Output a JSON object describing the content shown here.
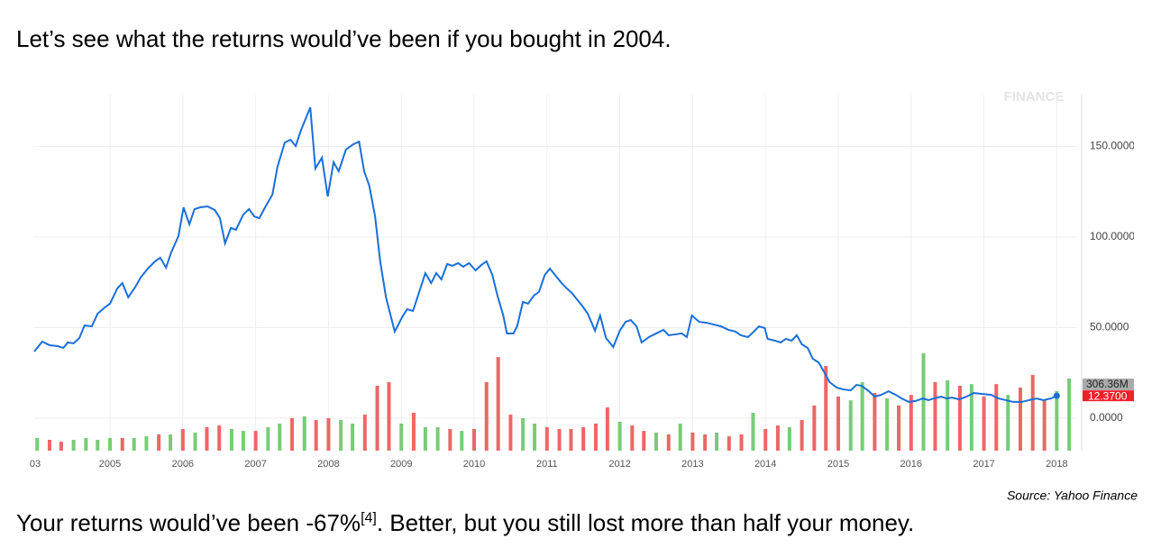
{
  "heading": "Let’s see what the returns would’ve been if you bought in 2004.",
  "chart_data": {
    "type": "line",
    "watermark": "FINANCE",
    "source": "Source: Yahoo Finance",
    "color": "#1a6fd9",
    "x": [
      2003.96,
      2004.07,
      2004.17,
      2004.28,
      2004.36,
      2004.42,
      2004.5,
      2004.58,
      2004.65,
      2004.75,
      2004.83,
      2004.93,
      2005.0,
      2005.1,
      2005.17,
      2005.25,
      2005.35,
      2005.42,
      2005.52,
      2005.62,
      2005.69,
      2005.77,
      2005.84,
      2005.94,
      2006.01,
      2006.09,
      2006.16,
      2006.24,
      2006.34,
      2006.44,
      2006.51,
      2006.58,
      2006.66,
      2006.73,
      2006.83,
      2006.91,
      2006.98,
      2007.05,
      2007.13,
      2007.23,
      2007.3,
      2007.4,
      2007.48,
      2007.55,
      2007.62,
      2007.75,
      2007.82,
      2007.91,
      2007.99,
      2008.07,
      2008.14,
      2008.24,
      2008.34,
      2008.42,
      2008.49,
      2008.56,
      2008.64,
      2008.71,
      2008.79,
      2008.91,
      2009.01,
      2009.08,
      2009.16,
      2009.23,
      2009.33,
      2009.41,
      2009.48,
      2009.55,
      2009.63,
      2009.7,
      2009.78,
      2009.85,
      2009.93,
      2010.02,
      2010.1,
      2010.17,
      2010.25,
      2010.32,
      2010.4,
      2010.45,
      2010.54,
      2010.59,
      2010.67,
      2010.74,
      2010.82,
      2010.89,
      2010.97,
      2011.04,
      2011.11,
      2011.19,
      2011.26,
      2011.34,
      2011.41,
      2011.49,
      2011.56,
      2011.66,
      2011.73,
      2011.81,
      2011.91,
      2012.0,
      2012.08,
      2012.15,
      2012.23,
      2012.3,
      2012.4,
      2012.5,
      2012.6,
      2012.67,
      2012.77,
      2012.85,
      2012.92,
      2012.99,
      2013.09,
      2013.19,
      2013.29,
      2013.39,
      2013.49,
      2013.59,
      2013.66,
      2013.76,
      2013.84,
      2013.91,
      2013.99,
      2014.03,
      2014.13,
      2014.21,
      2014.28,
      2014.36,
      2014.43,
      2014.5,
      2014.58,
      2014.65,
      2014.73,
      2014.8,
      2014.88,
      2014.98,
      2015.07,
      2015.17,
      2015.25,
      2015.32,
      2015.42,
      2015.5,
      2015.59,
      2015.69,
      2015.79,
      2015.87,
      2015.97,
      2016.06,
      2016.16,
      2016.24,
      2016.31,
      2016.41,
      2016.49,
      2016.56,
      2016.66,
      2016.76,
      2016.86,
      2016.98,
      2017.1,
      2017.2,
      2017.3,
      2017.4,
      2017.52,
      2017.62,
      2017.72,
      2017.82,
      2017.92,
      2018.0
    ],
    "values": [
      36.8,
      42.3,
      40.3,
      39.8,
      38.8,
      41.8,
      41.3,
      44.3,
      51.2,
      50.7,
      57.7,
      61.2,
      63.2,
      71.6,
      74.6,
      66.7,
      72.6,
      77.6,
      82.6,
      86.6,
      88.6,
      83.1,
      91.5,
      100.5,
      116.4,
      107.0,
      115.4,
      116.4,
      116.9,
      114.9,
      110.4,
      96.5,
      105.0,
      104.0,
      112.4,
      115.4,
      111.4,
      110.4,
      116.4,
      123.4,
      138.8,
      152.2,
      153.7,
      150.2,
      158.7,
      171.6,
      137.8,
      143.8,
      122.4,
      141.3,
      136.3,
      148.3,
      151.2,
      152.7,
      136.3,
      128.4,
      111.4,
      86.6,
      66.7,
      47.8,
      55.7,
      60.2,
      59.2,
      67.7,
      80.1,
      74.6,
      80.1,
      76.6,
      85.1,
      84.1,
      85.6,
      83.6,
      85.6,
      81.6,
      84.6,
      86.6,
      79.1,
      67.7,
      56.7,
      46.8,
      46.8,
      50.7,
      64.2,
      63.2,
      67.7,
      69.7,
      79.1,
      82.6,
      79.1,
      75.1,
      72.1,
      69.2,
      65.7,
      61.7,
      57.7,
      48.3,
      56.7,
      44.3,
      39.3,
      48.3,
      53.2,
      54.2,
      50.7,
      41.8,
      44.8,
      46.8,
      48.8,
      45.8,
      46.3,
      46.8,
      44.8,
      56.7,
      53.2,
      52.7,
      51.7,
      50.7,
      48.8,
      47.8,
      45.8,
      44.8,
      47.8,
      50.7,
      49.8,
      43.8,
      42.8,
      41.8,
      43.8,
      42.8,
      45.8,
      40.8,
      38.8,
      32.8,
      30.8,
      25.9,
      19.9,
      16.9,
      15.9,
      15.4,
      18.4,
      17.9,
      14.9,
      11.9,
      12.9,
      14.9,
      12.9,
      10.9,
      9.0,
      9.5,
      10.9,
      10.0,
      10.9,
      11.9,
      10.9,
      11.4,
      10.4,
      11.9,
      13.9,
      13.4,
      12.9,
      10.9,
      10.0,
      9.0,
      9.0,
      10.0,
      10.9,
      10.0,
      10.9,
      12.37
    ],
    "current_price_label": "12.3700",
    "current_volume_label": "306.36M",
    "volume": {
      "x": [
        2004.0,
        2004.17,
        2004.33,
        2004.5,
        2004.67,
        2004.83,
        2005.0,
        2005.17,
        2005.33,
        2005.5,
        2005.67,
        2005.83,
        2006.0,
        2006.17,
        2006.33,
        2006.5,
        2006.67,
        2006.83,
        2007.0,
        2007.17,
        2007.33,
        2007.5,
        2007.67,
        2007.83,
        2008.0,
        2008.17,
        2008.33,
        2008.5,
        2008.67,
        2008.83,
        2009.0,
        2009.17,
        2009.33,
        2009.5,
        2009.67,
        2009.83,
        2010.0,
        2010.17,
        2010.33,
        2010.5,
        2010.67,
        2010.83,
        2011.0,
        2011.17,
        2011.33,
        2011.5,
        2011.67,
        2011.83,
        2012.0,
        2012.17,
        2012.33,
        2012.5,
        2012.67,
        2012.83,
        2013.0,
        2013.17,
        2013.33,
        2013.5,
        2013.67,
        2013.83,
        2014.0,
        2014.17,
        2014.33,
        2014.5,
        2014.67,
        2014.83,
        2015.0,
        2015.17,
        2015.33,
        2015.5,
        2015.67,
        2015.83,
        2016.0,
        2016.17,
        2016.33,
        2016.5,
        2016.67,
        2016.83,
        2017.0,
        2017.17,
        2017.33,
        2017.5,
        2017.67,
        2017.83,
        2018.0,
        2018.17
      ],
      "values": [
        54,
        46,
        38,
        46,
        54,
        46,
        54,
        54,
        54,
        61,
        69,
        69,
        92,
        77,
        100,
        107,
        92,
        84,
        84,
        100,
        115,
        138,
        146,
        130,
        138,
        130,
        115,
        153,
        276,
        291,
        115,
        161,
        100,
        100,
        92,
        84,
        92,
        291,
        398,
        153,
        138,
        115,
        100,
        92,
        92,
        100,
        115,
        184,
        123,
        107,
        84,
        77,
        69,
        115,
        77,
        69,
        77,
        61,
        69,
        161,
        92,
        107,
        100,
        130,
        192,
        360,
        230,
        214,
        291,
        245,
        222,
        192,
        237,
        414,
        291,
        299,
        276,
        283,
        230,
        283,
        237,
        268,
        322,
        214,
        253,
        306.36
      ],
      "colors": [
        "#7c7",
        "#e66",
        "#e66",
        "#7c7",
        "#7c7",
        "#7c7",
        "#7c7",
        "#e66",
        "#7c7",
        "#7c7",
        "#e66",
        "#7c7",
        "#e66",
        "#7c7",
        "#e66",
        "#e66",
        "#7c7",
        "#7c7",
        "#e66",
        "#7c7",
        "#7c7",
        "#e66",
        "#7c7",
        "#e66",
        "#e66",
        "#7c7",
        "#7c7",
        "#e66",
        "#e66",
        "#e66",
        "#7c7",
        "#e66",
        "#7c7",
        "#7c7",
        "#e66",
        "#7c7",
        "#e66",
        "#e66",
        "#e66",
        "#e66",
        "#7c7",
        "#7c7",
        "#e66",
        "#e66",
        "#e66",
        "#e66",
        "#e66",
        "#e66",
        "#7c7",
        "#e66",
        "#e66",
        "#7c7",
        "#e66",
        "#7c7",
        "#e66",
        "#e66",
        "#7c7",
        "#e66",
        "#e66",
        "#7c7",
        "#e66",
        "#e66",
        "#7c7",
        "#e66",
        "#e66",
        "#e66",
        "#e66",
        "#7c7",
        "#7c7",
        "#e66",
        "#7c7",
        "#e66",
        "#e66",
        "#7c7",
        "#e66",
        "#7c7",
        "#e66",
        "#7c7",
        "#e66",
        "#e66",
        "#7c7",
        "#e66",
        "#e66",
        "#e66",
        "#7c7",
        "#7c7"
      ]
    },
    "xlim": [
      2003.96,
      2018.28
    ],
    "ylim": [
      -17.9,
      178.6
    ],
    "y2lim": [
      0,
      1513
    ],
    "xticks": [
      {
        "value": 2003,
        "label": "03"
      },
      2005,
      2006,
      2007,
      2008,
      2009,
      2010,
      2011,
      2012,
      2013,
      2014,
      2015,
      2016,
      2017,
      2018
    ],
    "yticks": [
      {
        "value": 0,
        "label": "0.0000"
      },
      {
        "value": 50,
        "label": "50.0000"
      },
      {
        "value": 100,
        "label": "100.0000"
      },
      {
        "value": 150,
        "label": "150.0000"
      }
    ],
    "grid": true
  },
  "conclusion": {
    "before": "Your returns would’ve been -67%",
    "ref": "[4]",
    "after": ". Better, but you still lost more than half your money."
  }
}
